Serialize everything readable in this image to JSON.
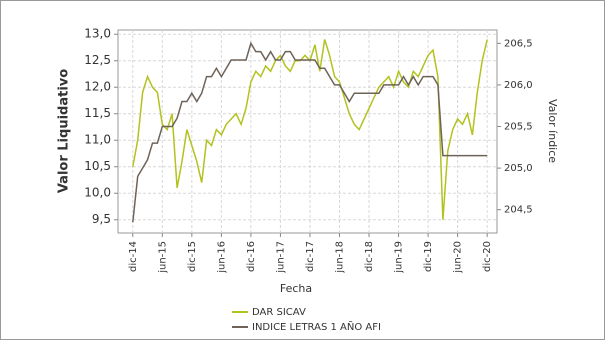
{
  "chart_data": {
    "type": "line",
    "x_label": "Fecha",
    "y_label": "Valor Liquidativo",
    "y2_label": "Valor índice",
    "x": [
      "2014-12",
      "2015-01",
      "2015-02",
      "2015-03",
      "2015-04",
      "2015-05",
      "2015-06",
      "2015-07",
      "2015-08",
      "2015-09",
      "2015-10",
      "2015-11",
      "2015-12",
      "2016-01",
      "2016-02",
      "2016-03",
      "2016-04",
      "2016-05",
      "2016-06",
      "2016-07",
      "2016-08",
      "2016-09",
      "2016-10",
      "2016-11",
      "2016-12",
      "2017-01",
      "2017-02",
      "2017-03",
      "2017-04",
      "2017-05",
      "2017-06",
      "2017-07",
      "2017-08",
      "2017-09",
      "2017-10",
      "2017-11",
      "2017-12",
      "2018-01",
      "2018-02",
      "2018-03",
      "2018-04",
      "2018-05",
      "2018-06",
      "2018-07",
      "2018-08",
      "2018-09",
      "2018-10",
      "2018-11",
      "2018-12",
      "2019-01",
      "2019-02",
      "2019-03",
      "2019-04",
      "2019-05",
      "2019-06",
      "2019-07",
      "2019-08",
      "2019-09",
      "2019-10",
      "2019-11",
      "2019-12",
      "2020-01",
      "2020-02",
      "2020-03",
      "2020-04",
      "2020-05",
      "2020-06",
      "2020-07",
      "2020-08",
      "2020-09",
      "2020-10",
      "2020-11",
      "2020-12"
    ],
    "xlim": [
      "2014-09",
      "2021-02"
    ],
    "xticks": [
      {
        "value": "2014-12",
        "label": "dic-14"
      },
      {
        "value": "2015-06",
        "label": "jun-15"
      },
      {
        "value": "2015-12",
        "label": "dic-15"
      },
      {
        "value": "2016-06",
        "label": "jun-16"
      },
      {
        "value": "2016-12",
        "label": "dic-16"
      },
      {
        "value": "2017-06",
        "label": "jun-17"
      },
      {
        "value": "2017-12",
        "label": "dic-17"
      },
      {
        "value": "2018-06",
        "label": "jun-18"
      },
      {
        "value": "2018-12",
        "label": "dic-18"
      },
      {
        "value": "2019-06",
        "label": "jun-19"
      },
      {
        "value": "2019-12",
        "label": "dic-19"
      },
      {
        "value": "2020-06",
        "label": "jun-20"
      },
      {
        "value": "2020-12",
        "label": "dic-20"
      }
    ],
    "ylim": [
      9.25,
      13.08
    ],
    "yticks": [
      {
        "value": 9.5,
        "label": "9,5"
      },
      {
        "value": 10.0,
        "label": "10,0"
      },
      {
        "value": 10.5,
        "label": "10,5"
      },
      {
        "value": 11.0,
        "label": "11,0"
      },
      {
        "value": 11.5,
        "label": "11,5"
      },
      {
        "value": 12.0,
        "label": "12,0"
      },
      {
        "value": 12.5,
        "label": "12,5"
      },
      {
        "value": 13.0,
        "label": "13,0"
      }
    ],
    "y2lim": [
      204.22,
      206.66
    ],
    "y2ticks": [
      {
        "value": 204.5,
        "label": "204,5"
      },
      {
        "value": 205.0,
        "label": "205,0"
      },
      {
        "value": 205.5,
        "label": "205,5"
      },
      {
        "value": 206.0,
        "label": "206,0"
      },
      {
        "value": 206.5,
        "label": "206,5"
      }
    ],
    "grid": true,
    "legend": "bottom",
    "series": [
      {
        "name": "DAR SICAV",
        "color": "#b3c21f",
        "values": [
          10.5,
          11.0,
          11.9,
          12.2,
          12.0,
          11.9,
          11.3,
          11.2,
          11.5,
          10.1,
          10.6,
          11.2,
          10.9,
          10.6,
          10.2,
          11.0,
          10.9,
          11.2,
          11.1,
          11.3,
          11.4,
          11.5,
          11.3,
          11.6,
          12.1,
          12.3,
          12.2,
          12.4,
          12.3,
          12.5,
          12.6,
          12.4,
          12.3,
          12.5,
          12.5,
          12.6,
          12.5,
          12.8,
          12.3,
          12.9,
          12.6,
          12.2,
          12.1,
          11.8,
          11.5,
          11.3,
          11.2,
          11.4,
          11.6,
          11.8,
          12.0,
          12.1,
          12.2,
          12.0,
          12.3,
          12.1,
          12.0,
          12.3,
          12.2,
          12.4,
          12.6,
          12.7,
          12.2,
          9.5,
          10.8,
          11.2,
          11.4,
          11.3,
          11.5,
          11.1,
          11.9,
          12.5,
          12.9
        ]
      },
      {
        "name": "INDICE LETRAS 1 AÑO AFI",
        "color": "#6e6359",
        "axis": "y2",
        "values": [
          204.35,
          204.9,
          205.0,
          205.1,
          205.3,
          205.3,
          205.5,
          205.5,
          205.5,
          205.6,
          205.8,
          205.8,
          205.9,
          205.8,
          205.9,
          206.1,
          206.1,
          206.2,
          206.1,
          206.2,
          206.3,
          206.3,
          206.3,
          206.3,
          206.5,
          206.4,
          206.4,
          206.3,
          206.4,
          206.3,
          206.3,
          206.4,
          206.4,
          206.3,
          206.3,
          206.3,
          206.3,
          206.3,
          206.2,
          206.2,
          206.1,
          206.0,
          206.0,
          205.9,
          205.8,
          205.9,
          205.9,
          205.9,
          205.9,
          205.9,
          205.9,
          206.0,
          206.0,
          206.0,
          206.0,
          206.1,
          206.0,
          206.1,
          206.0,
          206.1,
          206.1,
          206.1,
          206.0,
          205.15,
          205.15,
          205.15,
          205.15,
          205.15,
          205.15,
          205.15,
          205.15,
          205.15,
          205.15
        ]
      }
    ]
  }
}
